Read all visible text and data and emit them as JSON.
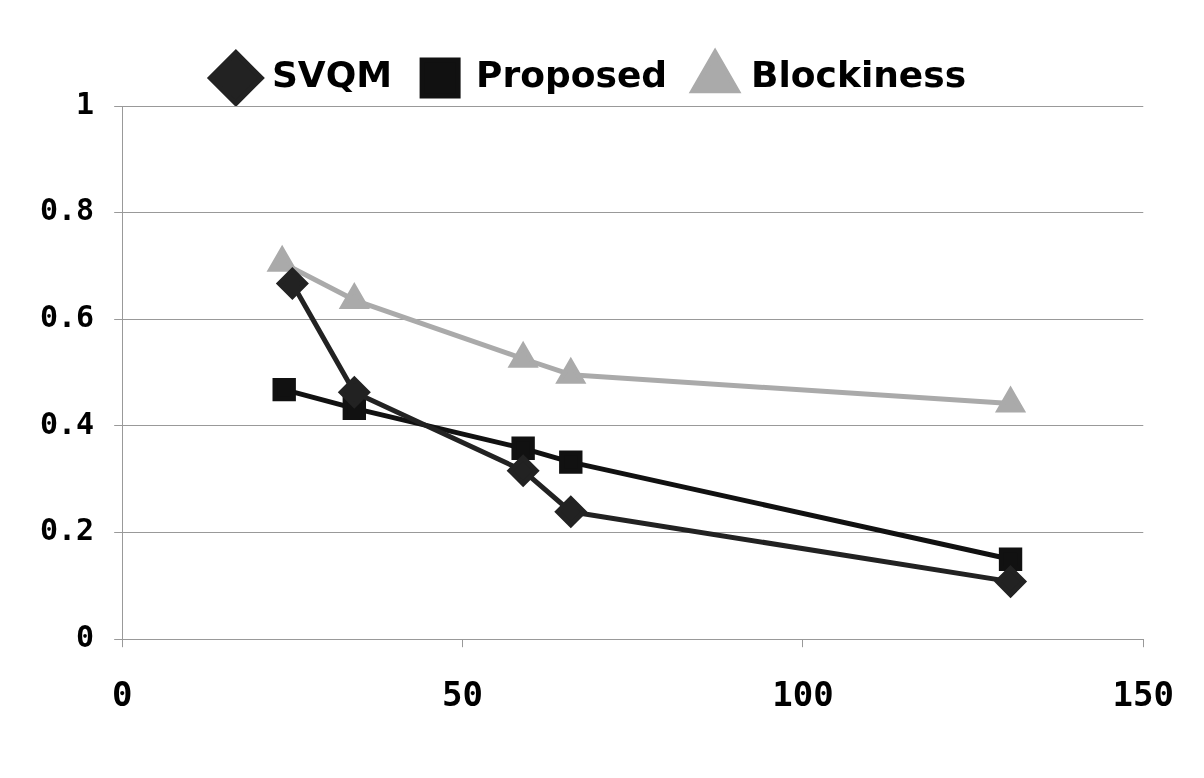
{
  "chart_data": {
    "type": "line",
    "legend": "top",
    "grid": "y",
    "xlim": [
      0,
      150
    ],
    "xticks": [
      0,
      50,
      100,
      150
    ],
    "ylim": [
      0,
      1
    ],
    "yticks": [
      0,
      0.2,
      0.4,
      0.6,
      0.8,
      1
    ],
    "series": [
      {
        "name": "SVQM",
        "color": "#222222",
        "marker": "diamond",
        "x": [
          25,
          34.1,
          58.9,
          65.9,
          130.5
        ],
        "values": [
          0.667,
          0.463,
          0.316,
          0.239,
          0.108
        ]
      },
      {
        "name": "Proposed",
        "color": "#111111",
        "marker": "square",
        "x": [
          23.8,
          34.1,
          58.9,
          65.9,
          130.5
        ],
        "values": [
          0.468,
          0.433,
          0.358,
          0.332,
          0.15
        ]
      },
      {
        "name": "Blockiness",
        "color": "#aaaaaa",
        "marker": "triangle",
        "x": [
          23.5,
          34.1,
          58.9,
          65.9,
          130.5
        ],
        "values": [
          0.706,
          0.636,
          0.526,
          0.496,
          0.442
        ]
      }
    ]
  }
}
